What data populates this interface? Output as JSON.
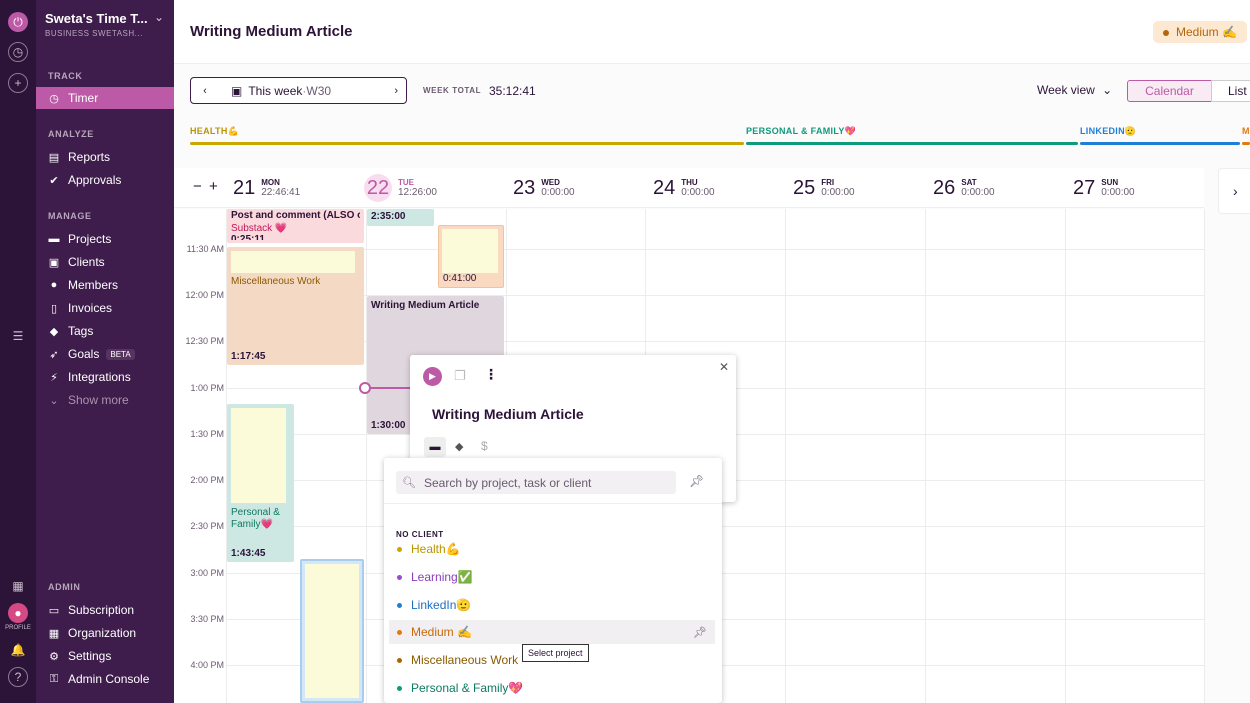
{
  "rail": {
    "profile_label": "PROFILE"
  },
  "sidebar": {
    "workspace_name": "Sweta's Time T...",
    "workspace_sub": "BUSINESS SWETASH...",
    "sections": {
      "track": "TRACK",
      "analyze": "ANALYZE",
      "manage": "MANAGE",
      "admin": "ADMIN"
    },
    "items": {
      "timer": "Timer",
      "reports": "Reports",
      "approvals": "Approvals",
      "projects": "Projects",
      "clients": "Clients",
      "members": "Members",
      "invoices": "Invoices",
      "tags": "Tags",
      "goals": "Goals",
      "goals_badge": "BETA",
      "integrations": "Integrations",
      "show_more": "Show more",
      "subscription": "Subscription",
      "organization": "Organization",
      "settings": "Settings",
      "admin_console": "Admin Console"
    }
  },
  "header": {
    "title": "Writing Medium Article",
    "tag": "Medium ✍️"
  },
  "toolbar": {
    "week_label": "This week",
    "week_sep": " · ",
    "week_num": "W30",
    "week_total_label": "WEEK TOTAL",
    "week_total_value": "35:12:41",
    "view_label": "Week view",
    "calendar_button": "Calendar",
    "list_button": "List"
  },
  "goals": {
    "health": "HEALTH💪",
    "personal": "PERSONAL & FAMILY💖",
    "linkedin": "LINKEDIN🫡",
    "m": "M"
  },
  "days": [
    {
      "num": "21",
      "name": "MON",
      "time": "22:46:41"
    },
    {
      "num": "22",
      "name": "TUE",
      "time": "12:26:00"
    },
    {
      "num": "23",
      "name": "WED",
      "time": "0:00:00"
    },
    {
      "num": "24",
      "name": "THU",
      "time": "0:00:00"
    },
    {
      "num": "25",
      "name": "FRI",
      "time": "0:00:00"
    },
    {
      "num": "26",
      "name": "SAT",
      "time": "0:00:00"
    },
    {
      "num": "27",
      "name": "SUN",
      "time": "0:00:00"
    }
  ],
  "times": [
    "11:30 AM",
    "12:00 PM",
    "12:30 PM",
    "1:00 PM",
    "1:30 PM",
    "2:00 PM",
    "2:30 PM",
    "3:00 PM",
    "3:30 PM",
    "4:00 PM"
  ],
  "events": {
    "post_title": "Post and comment (ALSO on ",
    "post_project": "Substack 💗",
    "post_time": "0:25:11",
    "tue_top_time": "2:35:00",
    "tue_small_time": "0:41:00",
    "misc_title": "Miscellaneous Work",
    "misc_time": "1:17:45",
    "wma_title": "Writing Medium Article",
    "wma_time": "1:30:00",
    "pf_title": "Personal & Family💗",
    "pf_time": "1:43:45"
  },
  "popup": {
    "title": "Writing Medium Article"
  },
  "project_picker": {
    "search_placeholder": "Search by project, task or client",
    "group_label": "NO CLIENT",
    "items": [
      {
        "label": "Health💪",
        "color": "#c9a600"
      },
      {
        "label": "Learning✅",
        "color": "#9b4dca"
      },
      {
        "label": "LinkedIn🫡",
        "color": "#1e7fd6"
      },
      {
        "label": "Medium ✍️",
        "color": "#e07b14"
      },
      {
        "label": "Miscellaneous Work",
        "color": "#a66b00"
      },
      {
        "label": "Personal & Family💖",
        "color": "#0e9b7a"
      }
    ],
    "tooltip": "Select project"
  }
}
